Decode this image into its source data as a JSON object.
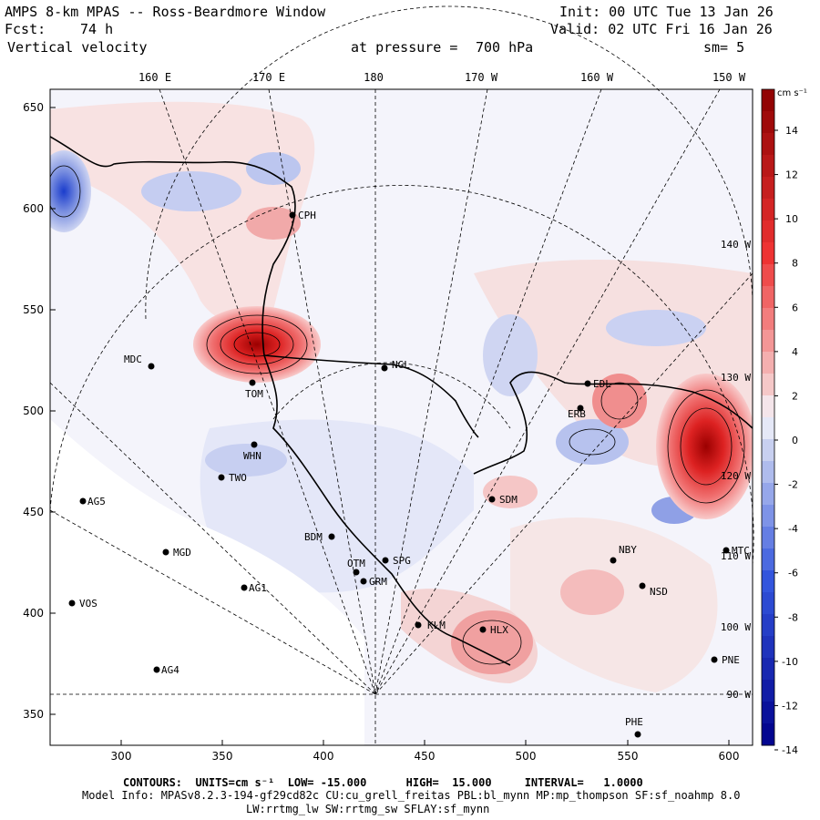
{
  "header": {
    "title": "AMPS 8-km MPAS -- Ross-Beardmore Window",
    "fcst_label": "Fcst:",
    "fcst_value": "74 h",
    "field": "Vertical velocity",
    "pressure_label": "at pressure =",
    "pressure_value": "700 hPa",
    "init": "Init: 00 UTC Tue 13 Jan 26",
    "valid": "Valid: 02 UTC Fri 16 Jan 26",
    "smooth": "sm= 5"
  },
  "axes": {
    "x_ticks": [
      "300",
      "350",
      "400",
      "450",
      "500",
      "550",
      "600"
    ],
    "y_ticks": [
      "650",
      "600",
      "550",
      "500",
      "450",
      "400",
      "350"
    ],
    "lon_labels": [
      "160 E",
      "170 E",
      "180",
      "170 W",
      "160 W",
      "150 W"
    ],
    "right_lon_labels": [
      "140 W",
      "130 W",
      "120 W",
      "110 W",
      "100 W",
      "90 W"
    ]
  },
  "colorbar": {
    "units": "cm s⁻¹",
    "ticks": [
      "14",
      "12",
      "10",
      "8",
      "6",
      "4",
      "2",
      "0",
      "-2",
      "-4",
      "-6",
      "-8",
      "-10",
      "-12",
      "-14"
    ],
    "colors": {
      "neg_max": "#00008b",
      "neg_mid": "#3355dd",
      "neg_light": "#c8d0f0",
      "neutral": "#f4f4fb",
      "pos_light": "#f5c8c8",
      "pos_mid": "#ee3333",
      "pos_max": "#8b0000"
    }
  },
  "stations": [
    {
      "code": "CPH"
    },
    {
      "code": "MDC"
    },
    {
      "code": "NGL"
    },
    {
      "code": "TOM"
    },
    {
      "code": "WHN"
    },
    {
      "code": "TWO"
    },
    {
      "code": "AG5"
    },
    {
      "code": "BDM"
    },
    {
      "code": "MGD"
    },
    {
      "code": "OTM"
    },
    {
      "code": "SPG"
    },
    {
      "code": "GRM"
    },
    {
      "code": "AG1"
    },
    {
      "code": "VOS"
    },
    {
      "code": "AG4"
    },
    {
      "code": "KLM"
    },
    {
      "code": "HLX"
    },
    {
      "code": "SDM"
    },
    {
      "code": "NBY"
    },
    {
      "code": "NSD"
    },
    {
      "code": "PNE"
    },
    {
      "code": "EDL"
    },
    {
      "code": "ERB"
    },
    {
      "code": "MTC"
    },
    {
      "code": "PHE"
    }
  ],
  "footer": {
    "contours": "CONTOURS:  UNITS=cm s⁻¹  LOW= -15.000      HIGH=  15.000     INTERVAL=   1.0000",
    "model_info": "Model Info: MPASv8.2.3-194-gf29cd82c CU:cu_grell_freitas PBL:bl_mynn MP:mp_thompson SF:sf_noahmp 8.0",
    "physics": "LW:rrtmg_lw SW:rrtmg_sw SFLAY:sf_mynn"
  }
}
